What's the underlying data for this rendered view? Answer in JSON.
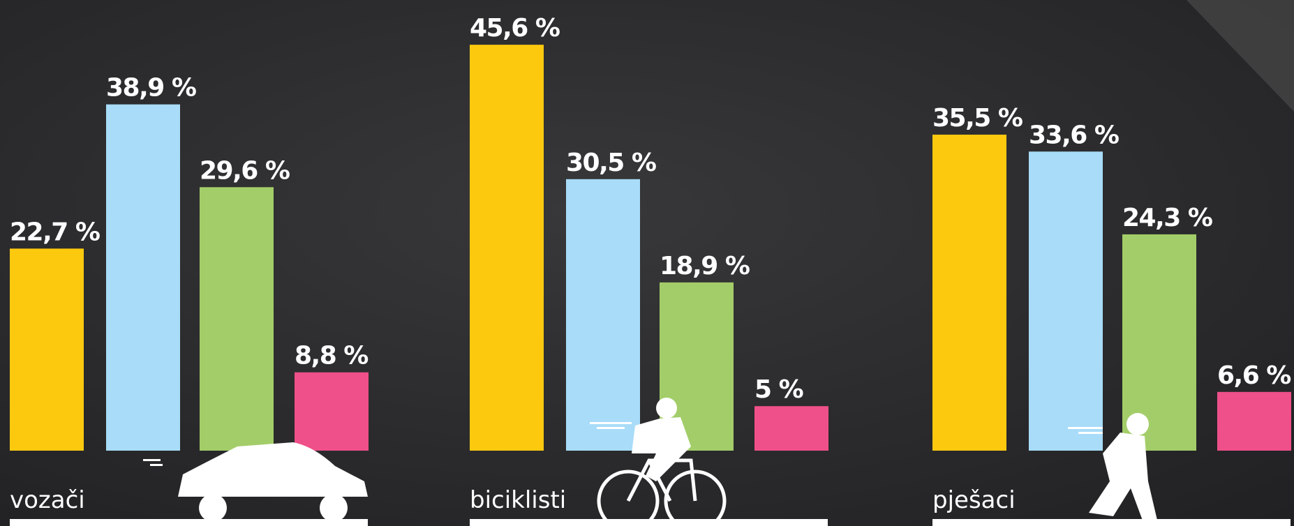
{
  "chart_data": {
    "type": "bar",
    "categories": [
      "vozači",
      "biciklisti",
      "pješaci"
    ],
    "series": [
      {
        "color": "#fdc90f",
        "values": [
          22.7,
          45.6,
          35.5
        ],
        "value_labels": [
          "22,7 %",
          "45,6 %",
          "35,5 %"
        ]
      },
      {
        "color": "#a8dcf8",
        "values": [
          38.9,
          30.5,
          33.6
        ],
        "value_labels": [
          "38,9 %",
          "30,5 %",
          "33,6 %"
        ]
      },
      {
        "color": "#a3cd69",
        "values": [
          29.6,
          18.9,
          24.3
        ],
        "value_labels": [
          "29,6 %",
          "18,9 %",
          "24,3 %"
        ]
      },
      {
        "color": "#ef5089",
        "values": [
          8.8,
          5,
          6.6
        ],
        "value_labels": [
          "8,8 %",
          "5 %",
          "6,6 %"
        ]
      }
    ],
    "ylim": [
      0,
      50
    ]
  }
}
